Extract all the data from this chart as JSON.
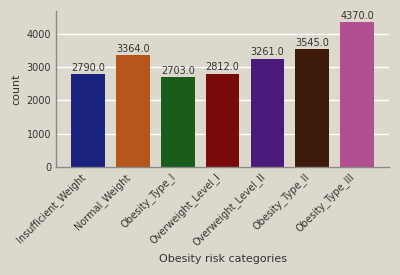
{
  "categories": [
    "Insufficient_Weight",
    "Normal_Weight",
    "Obesity_Type_I",
    "Overweight_Level_I",
    "Overweight_Level_II",
    "Obesity_Type_II",
    "Obesity_Type_III"
  ],
  "values": [
    2790.0,
    3364.0,
    2703.0,
    2812.0,
    3261.0,
    3545.0,
    4370.0
  ],
  "bar_colors": [
    "#1a237e",
    "#b5561a",
    "#1a5c1a",
    "#7a0a0a",
    "#4a1a7a",
    "#3d1a0a",
    "#b05090"
  ],
  "xlabel": "Obesity risk categories",
  "ylabel": "count",
  "ylim": [
    0,
    4700
  ],
  "yticks": [
    0,
    1000,
    2000,
    3000,
    4000
  ],
  "label_fontsize": 8,
  "tick_fontsize": 7,
  "annotation_fontsize": 7,
  "background_color": "#ddd8cc",
  "figure_background": "#ddd8cc"
}
